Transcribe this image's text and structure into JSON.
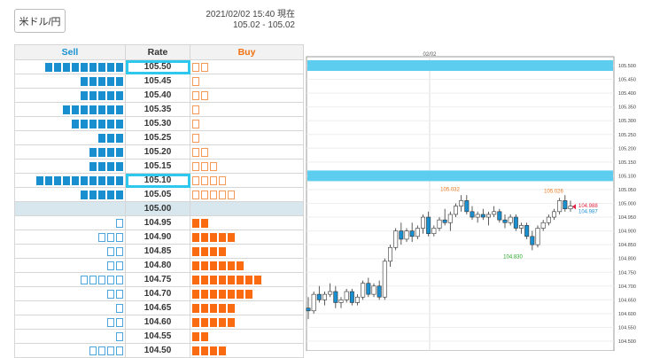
{
  "pair": {
    "label": "米ドル/円"
  },
  "header": {
    "timestamp": "2021/02/02 15:40 現在",
    "range": "105.02 - 105.02"
  },
  "book": {
    "columns": {
      "sell": "Sell",
      "rate": "Rate",
      "buy": "Buy"
    },
    "rows": [
      {
        "rate": "105.50",
        "sell": 9,
        "sell_style": "filled",
        "buy": 2,
        "buy_style": "outline",
        "highlight": true
      },
      {
        "rate": "105.45",
        "sell": 5,
        "sell_style": "filled",
        "buy": 1,
        "buy_style": "outline"
      },
      {
        "rate": "105.40",
        "sell": 5,
        "sell_style": "filled",
        "buy": 2,
        "buy_style": "outline"
      },
      {
        "rate": "105.35",
        "sell": 7,
        "sell_style": "filled",
        "buy": 1,
        "buy_style": "outline"
      },
      {
        "rate": "105.30",
        "sell": 6,
        "sell_style": "filled",
        "buy": 1,
        "buy_style": "outline"
      },
      {
        "rate": "105.25",
        "sell": 3,
        "sell_style": "filled",
        "buy": 1,
        "buy_style": "outline"
      },
      {
        "rate": "105.20",
        "sell": 4,
        "sell_style": "filled",
        "buy": 2,
        "buy_style": "outline"
      },
      {
        "rate": "105.15",
        "sell": 4,
        "sell_style": "filled",
        "buy": 3,
        "buy_style": "outline"
      },
      {
        "rate": "105.10",
        "sell": 10,
        "sell_style": "filled",
        "buy": 4,
        "buy_style": "outline",
        "highlight": true
      },
      {
        "rate": "105.05",
        "sell": 5,
        "sell_style": "filled",
        "buy": 5,
        "buy_style": "outline"
      },
      {
        "rate": "105.00",
        "sell": 0,
        "sell_style": "outline",
        "buy": 0,
        "buy_style": "filled",
        "mid": true
      },
      {
        "rate": "104.95",
        "sell": 1,
        "sell_style": "outline",
        "buy": 2,
        "buy_style": "filled"
      },
      {
        "rate": "104.90",
        "sell": 3,
        "sell_style": "outline",
        "buy": 5,
        "buy_style": "filled"
      },
      {
        "rate": "104.85",
        "sell": 2,
        "sell_style": "outline",
        "buy": 4,
        "buy_style": "filled"
      },
      {
        "rate": "104.80",
        "sell": 2,
        "sell_style": "outline",
        "buy": 6,
        "buy_style": "filled"
      },
      {
        "rate": "104.75",
        "sell": 5,
        "sell_style": "outline",
        "buy": 8,
        "buy_style": "filled"
      },
      {
        "rate": "104.70",
        "sell": 2,
        "sell_style": "outline",
        "buy": 7,
        "buy_style": "filled"
      },
      {
        "rate": "104.65",
        "sell": 1,
        "sell_style": "outline",
        "buy": 5,
        "buy_style": "filled"
      },
      {
        "rate": "104.60",
        "sell": 2,
        "sell_style": "outline",
        "buy": 5,
        "buy_style": "filled"
      },
      {
        "rate": "104.55",
        "sell": 1,
        "sell_style": "outline",
        "buy": 2,
        "buy_style": "filled"
      },
      {
        "rate": "104.50",
        "sell": 4,
        "sell_style": "outline",
        "buy": 4,
        "buy_style": "filled"
      }
    ]
  },
  "chart": {
    "date_label": "02/02",
    "y_axis_labels": [
      "105.500",
      "105.450",
      "105.400",
      "105.350",
      "105.300",
      "105.250",
      "105.200",
      "105.150",
      "105.100",
      "105.050",
      "105.000",
      "104.950",
      "104.900",
      "104.850",
      "104.800",
      "104.750",
      "104.700",
      "104.650",
      "104.600",
      "104.550",
      "104.500"
    ],
    "annotations": {
      "high1": "105.032",
      "high2": "105.026",
      "low": "104.830",
      "ask": "104.988",
      "bid": "104.987"
    },
    "highlight_levels": [
      105.5,
      105.1
    ],
    "colors": {
      "up": "#ffffff",
      "down": "#1a8fd0",
      "band": "#5ccdee",
      "high": "#f07a20",
      "low": "#22aa22",
      "ask": "#e02040",
      "bid": "#2090d0"
    }
  },
  "chart_data": {
    "type": "candlestick",
    "ylim": [
      104.5,
      105.5
    ],
    "x_tick": "02/02",
    "candles": [
      [
        104.62,
        104.66,
        104.58,
        104.61
      ],
      [
        104.61,
        104.68,
        104.6,
        104.67
      ],
      [
        104.67,
        104.7,
        104.64,
        104.65
      ],
      [
        104.65,
        104.68,
        104.63,
        104.67
      ],
      [
        104.67,
        104.71,
        104.66,
        104.68
      ],
      [
        104.68,
        104.7,
        104.62,
        104.64
      ],
      [
        104.64,
        104.66,
        104.62,
        104.65
      ],
      [
        104.65,
        104.69,
        104.64,
        104.68
      ],
      [
        104.68,
        104.69,
        104.63,
        104.64
      ],
      [
        104.64,
        104.67,
        104.63,
        104.66
      ],
      [
        104.66,
        104.72,
        104.65,
        104.71
      ],
      [
        104.71,
        104.73,
        104.66,
        104.67
      ],
      [
        104.67,
        104.71,
        104.66,
        104.7
      ],
      [
        104.7,
        104.72,
        104.65,
        104.66
      ],
      [
        104.66,
        104.8,
        104.65,
        104.79
      ],
      [
        104.79,
        104.85,
        104.77,
        104.84
      ],
      [
        104.84,
        104.91,
        104.83,
        104.9
      ],
      [
        104.9,
        104.93,
        104.85,
        104.87
      ],
      [
        104.87,
        104.91,
        104.86,
        104.9
      ],
      [
        104.9,
        104.93,
        104.86,
        104.88
      ],
      [
        104.88,
        104.92,
        104.87,
        104.91
      ],
      [
        104.91,
        104.96,
        104.89,
        104.95
      ],
      [
        104.95,
        104.97,
        104.88,
        104.89
      ],
      [
        104.89,
        104.92,
        104.88,
        104.91
      ],
      [
        104.91,
        104.95,
        104.9,
        104.94
      ],
      [
        104.94,
        104.98,
        104.92,
        104.93
      ],
      [
        104.93,
        104.97,
        104.9,
        104.96
      ],
      [
        104.96,
        105.0,
        104.95,
        104.99
      ],
      [
        104.99,
        105.03,
        104.97,
        105.01
      ],
      [
        105.01,
        105.03,
        104.96,
        104.97
      ],
      [
        104.97,
        104.99,
        104.94,
        104.95
      ],
      [
        104.95,
        104.97,
        104.93,
        104.96
      ],
      [
        104.96,
        104.98,
        104.94,
        104.95
      ],
      [
        104.95,
        104.97,
        104.92,
        104.96
      ],
      [
        104.96,
        104.99,
        104.95,
        104.97
      ],
      [
        104.97,
        104.98,
        104.93,
        104.94
      ],
      [
        104.94,
        104.96,
        104.91,
        104.93
      ],
      [
        104.93,
        104.96,
        104.92,
        104.95
      ],
      [
        104.95,
        104.96,
        104.9,
        104.91
      ],
      [
        104.91,
        104.93,
        104.89,
        104.92
      ],
      [
        104.92,
        104.93,
        104.87,
        104.88
      ],
      [
        104.88,
        104.9,
        104.83,
        104.85
      ],
      [
        104.85,
        104.92,
        104.84,
        104.91
      ],
      [
        104.91,
        104.94,
        104.9,
        104.93
      ],
      [
        104.93,
        104.96,
        104.92,
        104.95
      ],
      [
        104.95,
        104.98,
        104.94,
        104.97
      ],
      [
        104.97,
        105.02,
        104.96,
        105.01
      ],
      [
        105.01,
        105.03,
        104.97,
        104.98
      ],
      [
        104.98,
        105.01,
        104.97,
        104.99
      ]
    ]
  }
}
